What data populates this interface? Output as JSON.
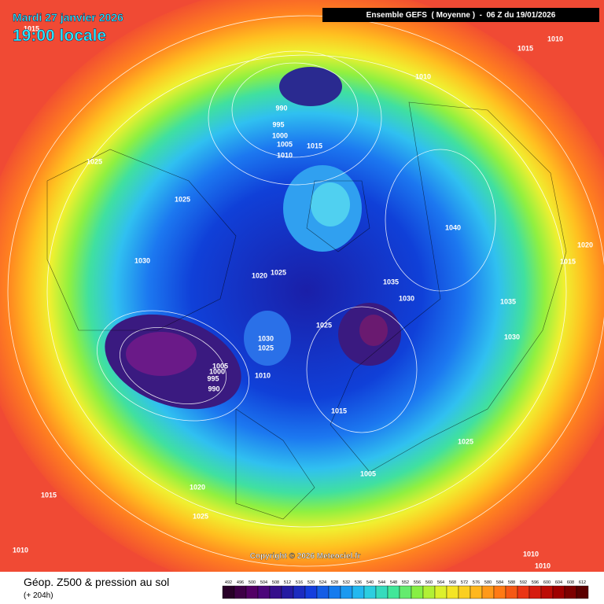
{
  "header": {
    "date": "Mardi 27 janvier 2026",
    "time": "19:00 locale",
    "run": "Ensemble GEFS  ( Moyenne )  -  06 Z du 19/01/2026"
  },
  "isobar_labels": [
    "1015",
    "1010",
    "1015",
    "1010",
    "990",
    "995",
    "1000",
    "1005",
    "1015",
    "1010",
    "1025",
    "1025",
    "1040",
    "1020",
    "1015",
    "1030",
    "1020",
    "1025",
    "1035",
    "1030",
    "1035",
    "1025",
    "1030",
    "1025",
    "1030",
    "1005",
    "1000",
    "995",
    "1010",
    "990",
    "1015",
    "1025",
    "1005",
    "1020",
    "1015",
    "1025",
    "1010",
    "1010",
    "1010"
  ],
  "copyright": "Copyright © 2026 Meteociel.fr",
  "footer": {
    "title": "Géop. Z500 & pression au sol",
    "lead": "(+ 204h)"
  },
  "colorbar": {
    "levels": [
      492,
      496,
      500,
      504,
      508,
      512,
      516,
      520,
      524,
      528,
      532,
      536,
      540,
      544,
      548,
      552,
      556,
      560,
      564,
      568,
      572,
      576,
      580,
      584,
      588,
      592,
      596,
      600,
      604,
      608,
      612
    ]
  }
}
